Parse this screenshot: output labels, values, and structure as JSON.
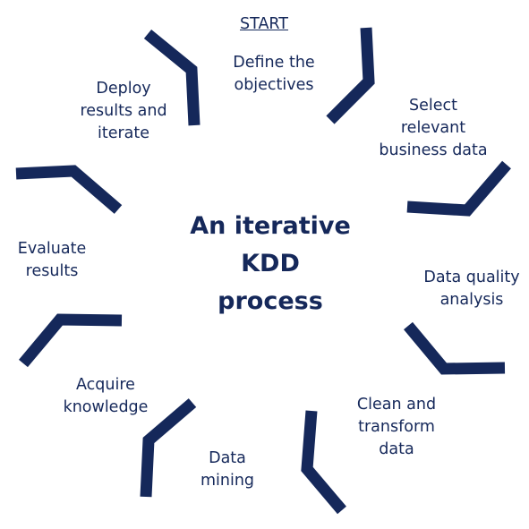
{
  "start_label": "START",
  "center_title": [
    "An iterative",
    "KDD",
    "process"
  ],
  "steps": [
    {
      "lines": [
        "Define the",
        "objectives"
      ]
    },
    {
      "lines": [
        "Select",
        "relevant",
        "business data"
      ]
    },
    {
      "lines": [
        "Data quality",
        "analysis"
      ]
    },
    {
      "lines": [
        "Clean and",
        "transform",
        "data"
      ]
    },
    {
      "lines": [
        "Data",
        "mining"
      ]
    },
    {
      "lines": [
        "Acquire",
        "knowledge"
      ]
    },
    {
      "lines": [
        "Evaluate",
        "results"
      ]
    },
    {
      "lines": [
        "Deploy",
        "results and",
        "iterate"
      ]
    }
  ],
  "colors": {
    "text": "#15285a",
    "arrow": "#15285a",
    "background": "#ffffff"
  }
}
